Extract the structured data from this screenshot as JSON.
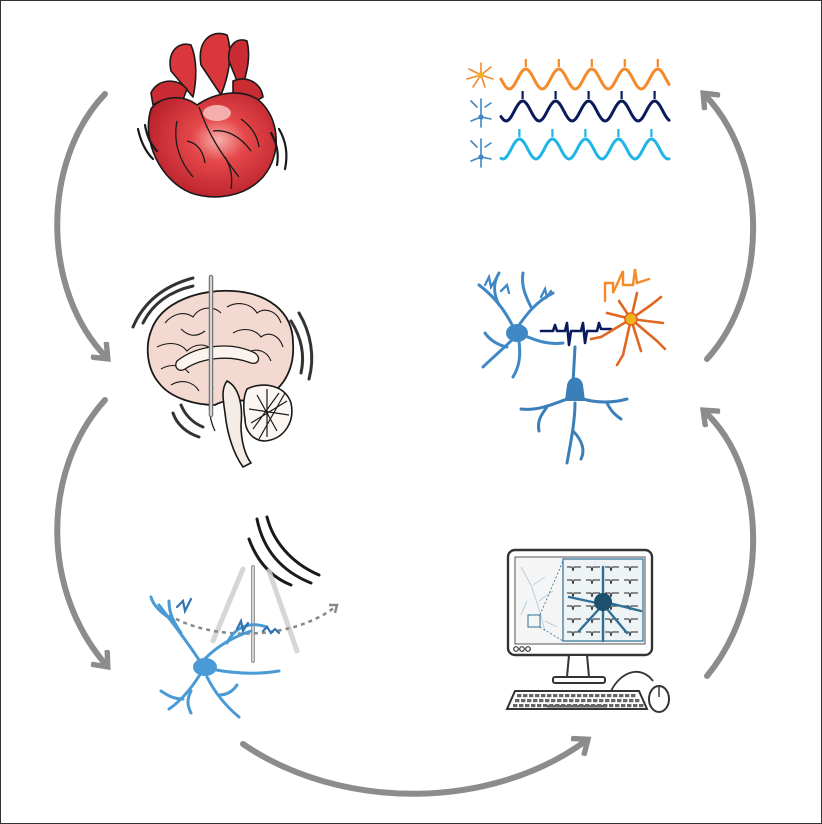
{
  "figure": {
    "background": "#ffffff",
    "border_color": "#333333",
    "arrow_color": "#8c8c8c",
    "panels": [
      {
        "id": "heart",
        "icon": "heart-icon",
        "colors": {
          "fill": "#d9373b",
          "highlight": "#f28a8a",
          "outline": "#1a1a1a"
        }
      },
      {
        "id": "brain",
        "icon": "brain-with-electrode-icon",
        "colors": {
          "fill": "#f3d9cf",
          "cerebellum": "#f5ece6",
          "outline": "#1a1a1a"
        }
      },
      {
        "id": "neuron-recording",
        "icon": "neuron-with-pipette-icon",
        "colors": {
          "neuron": "#4a9ad6",
          "pipette": "#cccccc",
          "arc": "#1a1a1a"
        }
      },
      {
        "id": "computer-model",
        "icon": "computer-workstation-icon",
        "colors": {
          "screen": "#f2f2f2",
          "frame": "#333333",
          "neuron": "#2e6f96"
        }
      },
      {
        "id": "network",
        "icon": "neuron-network-icon",
        "colors": {
          "pyramidal": "#3f88c5",
          "interneuron": "#e0671f",
          "soma_hub": "#f2b21c",
          "trace": "#0a1a5c"
        }
      },
      {
        "id": "oscillations",
        "icon": "oscillation-traces-icon",
        "colors": {
          "orange": "#f58a2a",
          "navy": "#0a1a5c",
          "cyan": "#1fb5e6"
        }
      }
    ],
    "cycle": [
      "heart",
      "brain",
      "neuron-recording",
      "computer-model",
      "network",
      "oscillations"
    ]
  }
}
